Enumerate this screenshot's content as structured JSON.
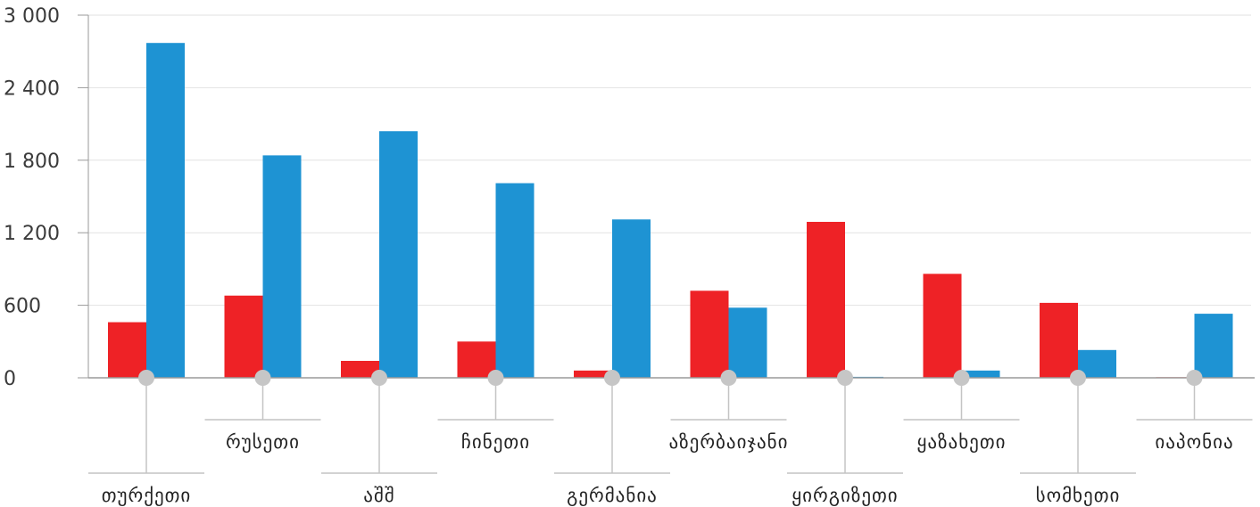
{
  "chart_data": {
    "type": "bar",
    "title": "",
    "xlabel": "",
    "ylabel": "",
    "ylim": [
      0,
      3000
    ],
    "yticks": [
      0,
      600,
      1200,
      1800,
      2400,
      3000
    ],
    "ytick_labels": [
      "0",
      "600",
      "1 200",
      "1 800",
      "2 400",
      "3 000"
    ],
    "grid": true,
    "legend": "none",
    "categories": [
      "თურქეთი",
      "რუსეთი",
      "აშშ",
      "ჩინეთი",
      "გერმანია",
      "აზერბაიჯანი",
      "ყირგიზეთი",
      "ყაზახეთი",
      "სომხეთი",
      "იაპონია"
    ],
    "series": [
      {
        "color": "#ee2226",
        "values": [
          460,
          680,
          140,
          300,
          60,
          720,
          1290,
          860,
          620,
          5
        ]
      },
      {
        "color": "#1e93d3",
        "values": [
          2770,
          1840,
          2040,
          1610,
          1310,
          580,
          8,
          60,
          230,
          530
        ]
      }
    ]
  }
}
